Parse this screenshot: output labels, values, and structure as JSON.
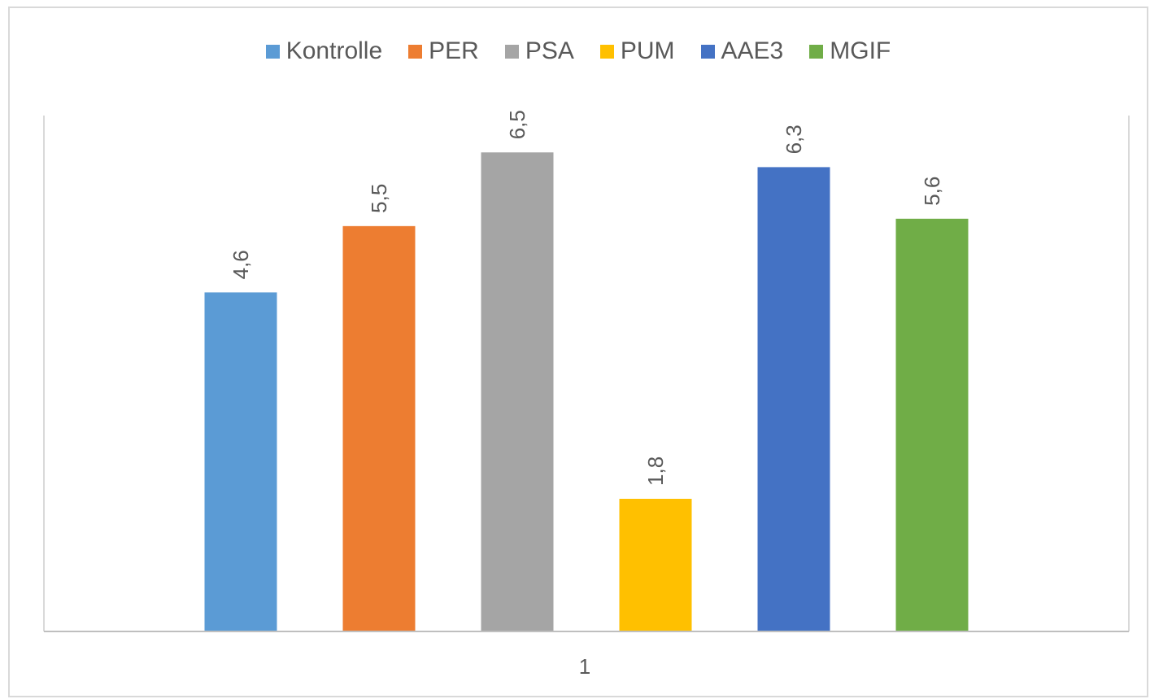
{
  "chart_data": {
    "type": "bar",
    "categories": [
      "1"
    ],
    "series": [
      {
        "name": "Kontrolle",
        "values": [
          4.6
        ],
        "label": "4,6",
        "color": "#5b9bd5"
      },
      {
        "name": "PER",
        "values": [
          5.5
        ],
        "label": "5,5",
        "color": "#ed7d31"
      },
      {
        "name": "PSA",
        "values": [
          6.5
        ],
        "label": "6,5",
        "color": "#a5a5a5"
      },
      {
        "name": "PUM",
        "values": [
          1.8
        ],
        "label": "1,8",
        "color": "#ffc000"
      },
      {
        "name": "AAE3",
        "values": [
          6.3
        ],
        "label": "6,3",
        "color": "#4472c4"
      },
      {
        "name": "MGIF",
        "values": [
          5.6
        ],
        "label": "5,6",
        "color": "#70ad47"
      }
    ],
    "ylim": [
      0,
      7
    ],
    "legend": "top",
    "grid": false,
    "data_labels": "rotated"
  }
}
